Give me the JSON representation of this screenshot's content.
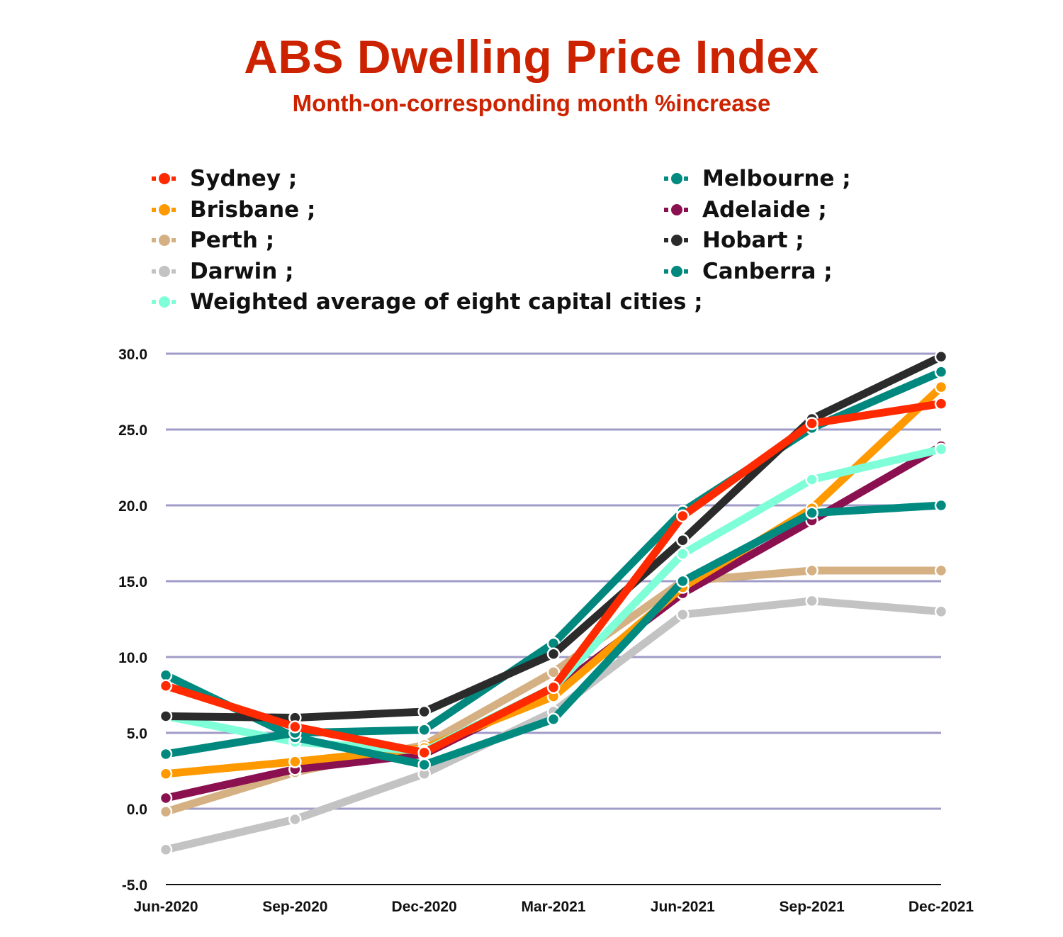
{
  "chart_data": {
    "type": "line",
    "title": "ABS Dwelling Price Index",
    "subtitle": "Month-on-corresponding month %increase",
    "xlabel": "",
    "ylabel": "",
    "x": [
      "Jun-2020",
      "Sep-2020",
      "Dec-2020",
      "Mar-2021",
      "Jun-2021",
      "Sep-2021",
      "Dec-2021"
    ],
    "ylim": [
      -5.0,
      30.0
    ],
    "yticks": [
      "30.0",
      "25.0",
      "20.0",
      "15.0",
      "10.0",
      "5.0",
      "0.0",
      "-5.0"
    ],
    "ytick_values": [
      30,
      25,
      20,
      15,
      10,
      5,
      0,
      -5
    ],
    "grid": true,
    "legend_position": "top",
    "series": [
      {
        "name": "Sydney",
        "legend_label": "Sydney ;",
        "color": "#ff2a00",
        "values": [
          8.1,
          5.4,
          3.7,
          8.0,
          19.3,
          25.4,
          26.7
        ]
      },
      {
        "name": "Brisbane",
        "legend_label": "Brisbane ;",
        "color": "#ff9900",
        "values": [
          2.3,
          3.1,
          4.0,
          7.4,
          14.6,
          19.8,
          27.8
        ]
      },
      {
        "name": "Perth",
        "legend_label": "Perth ;",
        "color": "#d4b083",
        "values": [
          -0.2,
          2.4,
          4.2,
          9.0,
          15.0,
          15.7,
          15.7
        ]
      },
      {
        "name": "Darwin",
        "legend_label": " Darwin ;",
        "color": "#c3c3c3",
        "values": [
          -2.7,
          -0.7,
          2.3,
          6.4,
          12.8,
          13.7,
          13.0
        ]
      },
      {
        "name": "Weighted average of eight capital cities",
        "legend_label": "Weighted average of eight capital cities ;",
        "color": "#7effd8",
        "values": [
          6.1,
          4.4,
          3.8,
          8.0,
          16.8,
          21.7,
          23.7
        ]
      },
      {
        "name": "Melbourne",
        "legend_label": "Melbourne ;",
        "color": "#008a80",
        "values": [
          8.8,
          4.7,
          2.9,
          5.9,
          15.0,
          19.5,
          20.0
        ]
      },
      {
        "name": "Adelaide",
        "legend_label": " Adelaide ;",
        "color": "#8b1050",
        "values": [
          0.7,
          2.6,
          3.6,
          7.8,
          14.2,
          19.0,
          23.9
        ]
      },
      {
        "name": "Hobart",
        "legend_label": " Hobart ;",
        "color": "#2b2b2b",
        "values": [
          6.1,
          6.0,
          6.4,
          10.2,
          17.7,
          25.7,
          29.8
        ]
      },
      {
        "name": "Canberra",
        "legend_label": "Canberra ;",
        "color": "#00887e",
        "values": [
          3.6,
          5.0,
          5.2,
          10.9,
          19.6,
          25.1,
          28.8
        ]
      }
    ],
    "draw_order": [
      "Darwin",
      "Perth",
      "Adelaide",
      "Brisbane",
      "Weighted average of eight capital cities",
      "Melbourne",
      "Canberra",
      "Hobart",
      "Sydney"
    ]
  },
  "colors": {
    "title": "#cc2200",
    "gridline": "#a09cc8",
    "baseline": "#111111"
  }
}
